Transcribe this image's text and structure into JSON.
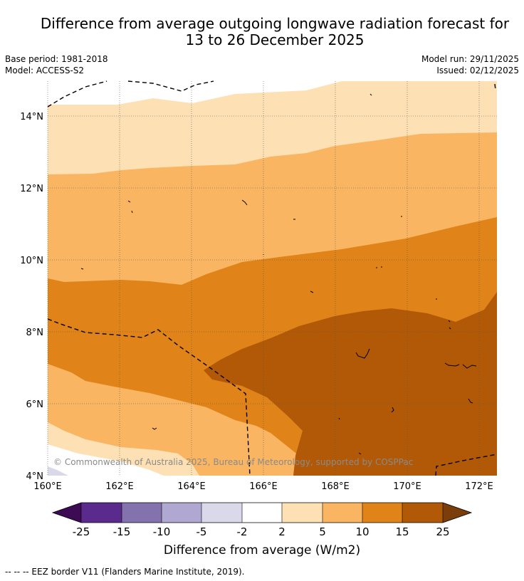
{
  "title_line1": "Difference from average outgoing longwave radiation forecast for",
  "title_line2": "13 to 26 December 2025",
  "base_period": "Base period: 1981-2018",
  "model": "Model: ACCESS-S2",
  "model_run": "Model run: 29/11/2025",
  "issued": "Issued: 02/12/2025",
  "copyright": "© Commonwealth of Australia 2025, Bureau of Meteorology, supported by COSPPac",
  "footer": "--  --  -- EEZ border V11 (Flanders Marine Institute, 2019).",
  "map": {
    "lon_ticks": [
      "160°E",
      "162°E",
      "164°E",
      "166°E",
      "168°E",
      "170°E",
      "172°E"
    ],
    "lat_ticks": [
      "14°N",
      "12°N",
      "10°N",
      "8°N",
      "6°N",
      "4°N"
    ],
    "lon_range": [
      160,
      172.5
    ],
    "lat_range": [
      4,
      15
    ]
  },
  "colorbar": {
    "label": "Difference from average (W/m2)",
    "ticks": [
      "-25",
      "-15",
      "-10",
      "-5",
      "-2",
      "2",
      "5",
      "10",
      "15",
      "25"
    ],
    "colors": {
      "below_min": "#3d0a54",
      "band_n25_n15": "#5b2a8d",
      "band_n15_n10": "#8472ad",
      "band_n10_n5": "#b1a8d2",
      "band_n5_n2": "#d9d9ea",
      "band_n2_2": "#ffffff",
      "band_2_5": "#fde0b4",
      "band_5_10": "#f9b561",
      "band_10_15": "#e08319",
      "band_15_25": "#b15906",
      "above_max": "#7b3d0a"
    }
  }
}
